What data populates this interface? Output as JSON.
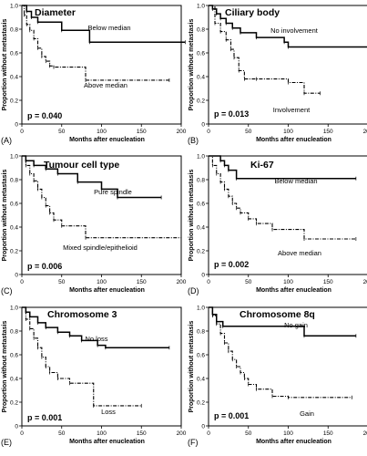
{
  "chart_data": [
    {
      "type": "line",
      "panel": "(A)",
      "title": "Diameter",
      "p_value": "p = 0.040",
      "xlabel": "Months after enucleation",
      "ylabel": "Proportion without metastasis",
      "xlim": [
        0,
        200
      ],
      "ylim": [
        0,
        1.0
      ],
      "xticks": [
        0,
        50,
        100,
        150,
        200
      ],
      "yticks": [
        0,
        0.2,
        0.4,
        0.6,
        0.8,
        1.0
      ],
      "series": [
        {
          "name": "Below median",
          "style": "solid",
          "x": [
            0,
            6,
            12,
            20,
            50,
            85,
            205
          ],
          "y": [
            1.0,
            0.95,
            0.9,
            0.86,
            0.79,
            0.69,
            0.69
          ]
        },
        {
          "name": "Above median",
          "style": "dashdot",
          "x": [
            0,
            3,
            6,
            10,
            15,
            20,
            25,
            30,
            35,
            40,
            80,
            185
          ],
          "y": [
            1.0,
            0.92,
            0.84,
            0.79,
            0.72,
            0.64,
            0.57,
            0.53,
            0.49,
            0.48,
            0.37,
            0.37
          ]
        }
      ]
    },
    {
      "type": "line",
      "panel": "(B)",
      "title": "Ciliary body",
      "p_value": "p = 0.013",
      "xlabel": "Months after enucleation",
      "ylabel": "Proportion without metastasis",
      "xlim": [
        0,
        200
      ],
      "ylim": [
        0,
        1.0
      ],
      "xticks": [
        0,
        50,
        100,
        150,
        200
      ],
      "yticks": [
        0,
        0.2,
        0.4,
        0.6,
        0.8,
        1.0
      ],
      "series": [
        {
          "name": "No involvement",
          "style": "solid",
          "x": [
            0,
            5,
            10,
            15,
            22,
            30,
            40,
            60,
            95,
            100,
            205
          ],
          "y": [
            1.0,
            0.97,
            0.93,
            0.89,
            0.85,
            0.81,
            0.77,
            0.73,
            0.69,
            0.65,
            0.65
          ]
        },
        {
          "name": "Involvement",
          "style": "dashdot",
          "x": [
            0,
            8,
            15,
            22,
            28,
            32,
            38,
            45,
            60,
            100,
            120,
            140
          ],
          "y": [
            1.0,
            0.85,
            0.78,
            0.71,
            0.63,
            0.56,
            0.45,
            0.38,
            0.38,
            0.35,
            0.26,
            0.26
          ]
        }
      ]
    },
    {
      "type": "line",
      "panel": "(C)",
      "title": "Tumour cell type",
      "p_value": "p = 0.006",
      "xlabel": "Months after enucleation",
      "ylabel": "Proportion without metastasis",
      "xlim": [
        0,
        200
      ],
      "ylim": [
        0,
        1.0
      ],
      "xticks": [
        0,
        50,
        100,
        150,
        200
      ],
      "yticks": [
        0,
        0.2,
        0.4,
        0.6,
        0.8,
        1.0
      ],
      "series": [
        {
          "name": "Pure spindle",
          "style": "solid",
          "x": [
            0,
            5,
            15,
            30,
            45,
            70,
            100,
            120,
            175
          ],
          "y": [
            1.0,
            0.96,
            0.92,
            0.89,
            0.85,
            0.78,
            0.72,
            0.65,
            0.65
          ]
        },
        {
          "name": "Mixed spindle/epithelioid",
          "style": "dashdot",
          "x": [
            0,
            5,
            10,
            15,
            20,
            25,
            30,
            35,
            40,
            50,
            80,
            200
          ],
          "y": [
            1.0,
            0.92,
            0.85,
            0.79,
            0.72,
            0.65,
            0.58,
            0.52,
            0.46,
            0.41,
            0.31,
            0.31
          ]
        }
      ]
    },
    {
      "type": "line",
      "panel": "(D)",
      "title": "Ki-67",
      "p_value": "p = 0.002",
      "xlabel": "Months after enucleation",
      "ylabel": "Proportion without metastasis",
      "xlim": [
        0,
        200
      ],
      "ylim": [
        0,
        1.0
      ],
      "xticks": [
        0,
        50,
        100,
        150,
        200
      ],
      "yticks": [
        0,
        0.2,
        0.4,
        0.6,
        0.8,
        1.0
      ],
      "series": [
        {
          "name": "Below median",
          "style": "solid",
          "x": [
            0,
            15,
            20,
            25,
            35,
            185
          ],
          "y": [
            1.0,
            0.96,
            0.92,
            0.88,
            0.81,
            0.81
          ]
        },
        {
          "name": "Above median",
          "style": "dashdot",
          "x": [
            0,
            5,
            10,
            15,
            20,
            25,
            30,
            35,
            40,
            50,
            60,
            80,
            120,
            185
          ],
          "y": [
            1.0,
            0.92,
            0.85,
            0.78,
            0.72,
            0.66,
            0.6,
            0.56,
            0.52,
            0.47,
            0.43,
            0.38,
            0.3,
            0.3
          ]
        }
      ]
    },
    {
      "type": "line",
      "panel": "(E)",
      "title": "Chromosome 3",
      "p_value": "p = 0.001",
      "xlabel": "Months after enucleation",
      "ylabel": "Proportion without metastasis",
      "xlim": [
        0,
        200
      ],
      "ylim": [
        0,
        1.0
      ],
      "xticks": [
        0,
        50,
        100,
        150,
        200
      ],
      "yticks": [
        0,
        0.2,
        0.4,
        0.6,
        0.8,
        1.0
      ],
      "series": [
        {
          "name": "No loss",
          "style": "solid",
          "x": [
            0,
            5,
            10,
            20,
            30,
            45,
            60,
            75,
            95,
            105,
            185
          ],
          "y": [
            1.0,
            0.96,
            0.92,
            0.87,
            0.83,
            0.79,
            0.76,
            0.72,
            0.68,
            0.66,
            0.66
          ]
        },
        {
          "name": "Loss",
          "style": "dashdot",
          "x": [
            0,
            5,
            10,
            15,
            20,
            25,
            30,
            35,
            45,
            60,
            90,
            150
          ],
          "y": [
            1.0,
            0.9,
            0.82,
            0.74,
            0.66,
            0.58,
            0.5,
            0.45,
            0.4,
            0.36,
            0.17,
            0.17
          ]
        }
      ]
    },
    {
      "type": "line",
      "panel": "(F)",
      "title": "Chromosome 8q",
      "p_value": "p = 0.001",
      "xlabel": "Months after enucleation",
      "ylabel": "Proportion without metastasis",
      "xlim": [
        0,
        200
      ],
      "ylim": [
        0,
        1.0
      ],
      "xticks": [
        0,
        50,
        100,
        150,
        200
      ],
      "yticks": [
        0,
        0.2,
        0.4,
        0.6,
        0.8,
        1.0
      ],
      "series": [
        {
          "name": "No gain",
          "style": "solid",
          "x": [
            0,
            5,
            10,
            18,
            120,
            185
          ],
          "y": [
            1.0,
            0.94,
            0.88,
            0.84,
            0.76,
            0.76
          ]
        },
        {
          "name": "Gain",
          "style": "dashdot",
          "x": [
            0,
            5,
            10,
            15,
            20,
            25,
            30,
            35,
            40,
            45,
            50,
            60,
            80,
            100,
            180
          ],
          "y": [
            1.0,
            0.93,
            0.86,
            0.78,
            0.7,
            0.63,
            0.56,
            0.5,
            0.45,
            0.4,
            0.35,
            0.31,
            0.25,
            0.24,
            0.24
          ]
        }
      ]
    }
  ]
}
